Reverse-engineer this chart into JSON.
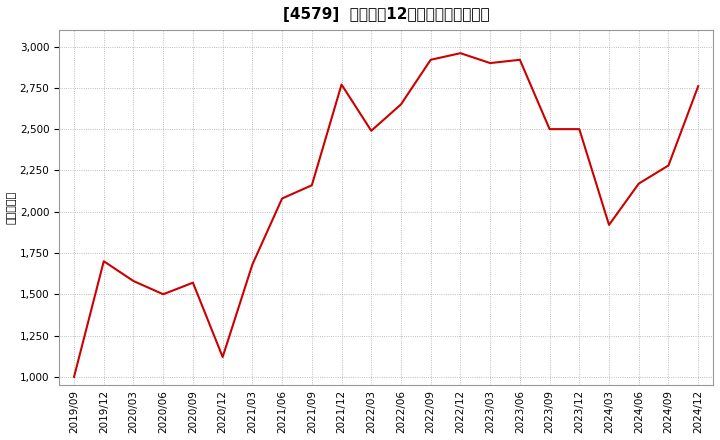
{
  "title": "[4579]  売上高の12か月移動合計の推移",
  "ylabel": "（百万円）",
  "line_color": "#cc0000",
  "background_color": "#ffffff",
  "plot_bg_color": "#ffffff",
  "grid_color": "#aaaaaa",
  "dates": [
    "2019/09",
    "2019/12",
    "2020/03",
    "2020/06",
    "2020/09",
    "2020/12",
    "2021/03",
    "2021/06",
    "2021/09",
    "2021/12",
    "2022/03",
    "2022/06",
    "2022/09",
    "2022/12",
    "2023/03",
    "2023/06",
    "2023/09",
    "2023/12",
    "2024/03",
    "2024/06",
    "2024/09",
    "2024/12"
  ],
  "values": [
    1000,
    1700,
    1580,
    1500,
    1570,
    1120,
    1680,
    2080,
    2160,
    2770,
    2490,
    2650,
    2920,
    2960,
    2900,
    2920,
    2500,
    2500,
    1920,
    2170,
    2280,
    2760
  ],
  "ylim": [
    950,
    3100
  ],
  "yticks": [
    1000,
    1250,
    1500,
    1750,
    2000,
    2250,
    2500,
    2750,
    3000
  ],
  "title_fontsize": 11,
  "label_fontsize": 8,
  "tick_fontsize": 7.5
}
